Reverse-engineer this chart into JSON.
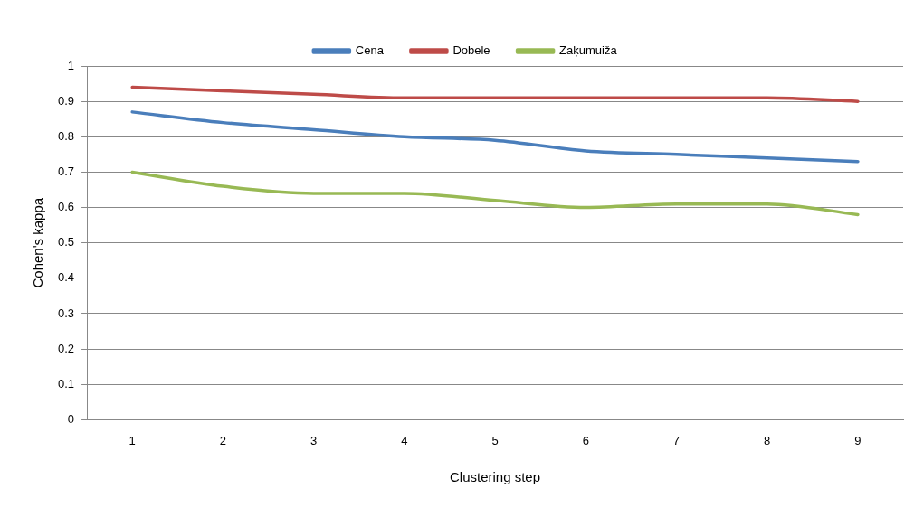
{
  "chart_data": {
    "type": "line",
    "xlabel": "Clustering step",
    "ylabel": "Cohen's kappa",
    "categories": [
      "1",
      "2",
      "3",
      "4",
      "5",
      "6",
      "7",
      "8",
      "9"
    ],
    "series": [
      {
        "name": "Cena",
        "color": "#4a7ebb",
        "values": [
          0.87,
          0.84,
          0.82,
          0.8,
          0.79,
          0.76,
          0.75,
          0.74,
          0.73
        ]
      },
      {
        "name": "Dobele",
        "color": "#be4b48",
        "values": [
          0.94,
          0.93,
          0.92,
          0.91,
          0.91,
          0.91,
          0.91,
          0.91,
          0.9
        ]
      },
      {
        "name": "Zaķumuiža",
        "color": "#98b954",
        "values": [
          0.7,
          0.66,
          0.64,
          0.64,
          0.62,
          0.6,
          0.61,
          0.61,
          0.58
        ]
      }
    ],
    "ylim": [
      0,
      1
    ],
    "yticks": [
      0,
      0.1,
      0.2,
      0.3,
      0.4,
      0.5,
      0.6,
      0.7,
      0.8,
      0.9,
      1
    ],
    "grid": "y",
    "legend": "top",
    "marker": "none",
    "line_style": "solid"
  }
}
